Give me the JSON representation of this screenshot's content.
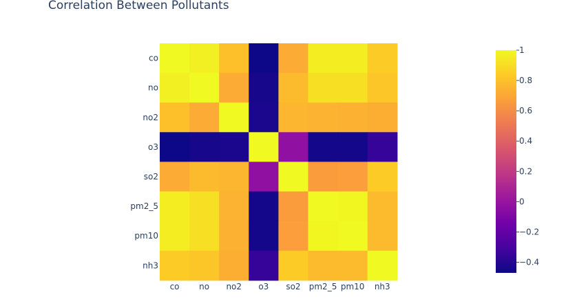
{
  "chart_data": {
    "type": "heatmap",
    "title": "Correlation Between Pollutants",
    "x": [
      "co",
      "no",
      "no2",
      "o3",
      "so2",
      "pm2_5",
      "pm10",
      "nh3"
    ],
    "y": [
      "co",
      "no",
      "no2",
      "o3",
      "so2",
      "pm2_5",
      "pm10",
      "nh3"
    ],
    "z": [
      [
        1.0,
        0.97,
        0.8,
        -0.47,
        0.72,
        0.96,
        0.96,
        0.84
      ],
      [
        0.97,
        1.0,
        0.72,
        -0.44,
        0.78,
        0.91,
        0.91,
        0.82
      ],
      [
        0.8,
        0.72,
        1.0,
        -0.43,
        0.76,
        0.75,
        0.74,
        0.73
      ],
      [
        -0.47,
        -0.44,
        -0.43,
        1.0,
        -0.03,
        -0.45,
        -0.45,
        -0.35
      ],
      [
        0.72,
        0.78,
        0.76,
        -0.03,
        1.0,
        0.66,
        0.67,
        0.84
      ],
      [
        0.96,
        0.91,
        0.75,
        -0.45,
        0.66,
        1.0,
        0.99,
        0.78
      ],
      [
        0.96,
        0.91,
        0.74,
        -0.45,
        0.67,
        0.99,
        1.0,
        0.78
      ],
      [
        0.84,
        0.82,
        0.73,
        -0.35,
        0.84,
        0.78,
        0.78,
        1.0
      ]
    ],
    "zmin": -0.47,
    "zmax": 1.0,
    "colorscale": [
      "#0d0887",
      "#46039f",
      "#7201a8",
      "#9c179e",
      "#bd3786",
      "#d8576b",
      "#ed7953",
      "#fb9f3a",
      "#fdca26",
      "#f0f921"
    ],
    "colorbar_ticks": [
      1,
      0.8,
      0.6,
      0.4,
      0.2,
      0,
      -0.2,
      -0.4
    ],
    "colorbar_tick_labels": [
      "1",
      "0.8",
      "0.6",
      "0.4",
      "0.2",
      "0",
      "−0.2",
      "−0.4"
    ],
    "grid": false,
    "legend": "colorbar-right"
  }
}
